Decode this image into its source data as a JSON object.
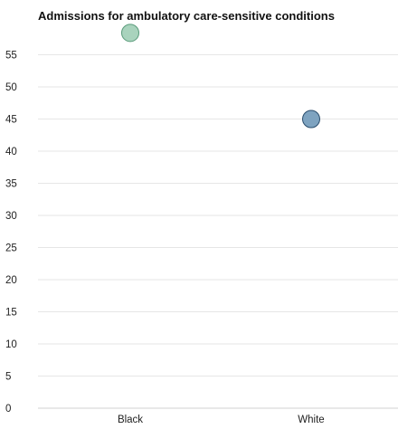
{
  "chart_data": {
    "type": "scatter",
    "title": "Admissions for ambulatory care-sensitive conditions",
    "xlabel": "",
    "ylabel": "",
    "categories": [
      "Black",
      "White"
    ],
    "values": [
      58.4,
      45.0
    ],
    "point_colors": [
      "#a9d3bd",
      "#7ea3c0"
    ],
    "point_stroke_colors": [
      "#5a9b7b",
      "#2a4d6d"
    ],
    "ylim": [
      0,
      58
    ],
    "yticks": [
      0,
      5,
      10,
      15,
      20,
      25,
      30,
      35,
      40,
      45,
      50,
      55
    ],
    "grid": true,
    "legend": "none"
  }
}
